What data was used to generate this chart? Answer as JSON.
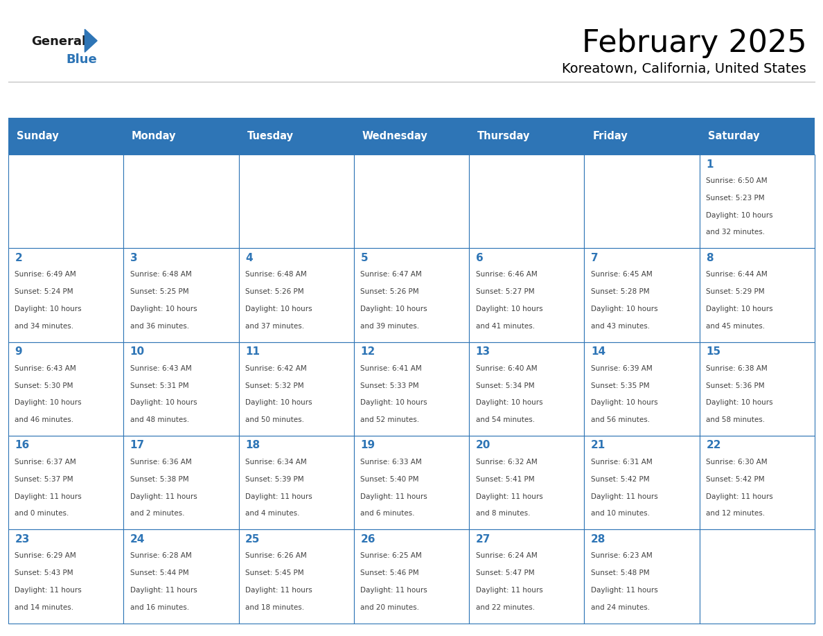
{
  "title": "February 2025",
  "subtitle": "Koreatown, California, United States",
  "header_bg": "#2E75B6",
  "header_text_color": "#FFFFFF",
  "cell_bg": "#FFFFFF",
  "border_color": "#2E75B6",
  "day_headers": [
    "Sunday",
    "Monday",
    "Tuesday",
    "Wednesday",
    "Thursday",
    "Friday",
    "Saturday"
  ],
  "title_color": "#000000",
  "subtitle_color": "#000000",
  "day_number_color": "#2E75B6",
  "cell_text_color": "#404040",
  "weeks": [
    [
      {
        "day": 0,
        "text": ""
      },
      {
        "day": 0,
        "text": ""
      },
      {
        "day": 0,
        "text": ""
      },
      {
        "day": 0,
        "text": ""
      },
      {
        "day": 0,
        "text": ""
      },
      {
        "day": 0,
        "text": ""
      },
      {
        "day": 1,
        "text": "Sunrise: 6:50 AM\nSunset: 5:23 PM\nDaylight: 10 hours\nand 32 minutes."
      }
    ],
    [
      {
        "day": 2,
        "text": "Sunrise: 6:49 AM\nSunset: 5:24 PM\nDaylight: 10 hours\nand 34 minutes."
      },
      {
        "day": 3,
        "text": "Sunrise: 6:48 AM\nSunset: 5:25 PM\nDaylight: 10 hours\nand 36 minutes."
      },
      {
        "day": 4,
        "text": "Sunrise: 6:48 AM\nSunset: 5:26 PM\nDaylight: 10 hours\nand 37 minutes."
      },
      {
        "day": 5,
        "text": "Sunrise: 6:47 AM\nSunset: 5:26 PM\nDaylight: 10 hours\nand 39 minutes."
      },
      {
        "day": 6,
        "text": "Sunrise: 6:46 AM\nSunset: 5:27 PM\nDaylight: 10 hours\nand 41 minutes."
      },
      {
        "day": 7,
        "text": "Sunrise: 6:45 AM\nSunset: 5:28 PM\nDaylight: 10 hours\nand 43 minutes."
      },
      {
        "day": 8,
        "text": "Sunrise: 6:44 AM\nSunset: 5:29 PM\nDaylight: 10 hours\nand 45 minutes."
      }
    ],
    [
      {
        "day": 9,
        "text": "Sunrise: 6:43 AM\nSunset: 5:30 PM\nDaylight: 10 hours\nand 46 minutes."
      },
      {
        "day": 10,
        "text": "Sunrise: 6:43 AM\nSunset: 5:31 PM\nDaylight: 10 hours\nand 48 minutes."
      },
      {
        "day": 11,
        "text": "Sunrise: 6:42 AM\nSunset: 5:32 PM\nDaylight: 10 hours\nand 50 minutes."
      },
      {
        "day": 12,
        "text": "Sunrise: 6:41 AM\nSunset: 5:33 PM\nDaylight: 10 hours\nand 52 minutes."
      },
      {
        "day": 13,
        "text": "Sunrise: 6:40 AM\nSunset: 5:34 PM\nDaylight: 10 hours\nand 54 minutes."
      },
      {
        "day": 14,
        "text": "Sunrise: 6:39 AM\nSunset: 5:35 PM\nDaylight: 10 hours\nand 56 minutes."
      },
      {
        "day": 15,
        "text": "Sunrise: 6:38 AM\nSunset: 5:36 PM\nDaylight: 10 hours\nand 58 minutes."
      }
    ],
    [
      {
        "day": 16,
        "text": "Sunrise: 6:37 AM\nSunset: 5:37 PM\nDaylight: 11 hours\nand 0 minutes."
      },
      {
        "day": 17,
        "text": "Sunrise: 6:36 AM\nSunset: 5:38 PM\nDaylight: 11 hours\nand 2 minutes."
      },
      {
        "day": 18,
        "text": "Sunrise: 6:34 AM\nSunset: 5:39 PM\nDaylight: 11 hours\nand 4 minutes."
      },
      {
        "day": 19,
        "text": "Sunrise: 6:33 AM\nSunset: 5:40 PM\nDaylight: 11 hours\nand 6 minutes."
      },
      {
        "day": 20,
        "text": "Sunrise: 6:32 AM\nSunset: 5:41 PM\nDaylight: 11 hours\nand 8 minutes."
      },
      {
        "day": 21,
        "text": "Sunrise: 6:31 AM\nSunset: 5:42 PM\nDaylight: 11 hours\nand 10 minutes."
      },
      {
        "day": 22,
        "text": "Sunrise: 6:30 AM\nSunset: 5:42 PM\nDaylight: 11 hours\nand 12 minutes."
      }
    ],
    [
      {
        "day": 23,
        "text": "Sunrise: 6:29 AM\nSunset: 5:43 PM\nDaylight: 11 hours\nand 14 minutes."
      },
      {
        "day": 24,
        "text": "Sunrise: 6:28 AM\nSunset: 5:44 PM\nDaylight: 11 hours\nand 16 minutes."
      },
      {
        "day": 25,
        "text": "Sunrise: 6:26 AM\nSunset: 5:45 PM\nDaylight: 11 hours\nand 18 minutes."
      },
      {
        "day": 26,
        "text": "Sunrise: 6:25 AM\nSunset: 5:46 PM\nDaylight: 11 hours\nand 20 minutes."
      },
      {
        "day": 27,
        "text": "Sunrise: 6:24 AM\nSunset: 5:47 PM\nDaylight: 11 hours\nand 22 minutes."
      },
      {
        "day": 28,
        "text": "Sunrise: 6:23 AM\nSunset: 5:48 PM\nDaylight: 11 hours\nand 24 minutes."
      },
      {
        "day": 0,
        "text": ""
      }
    ]
  ]
}
